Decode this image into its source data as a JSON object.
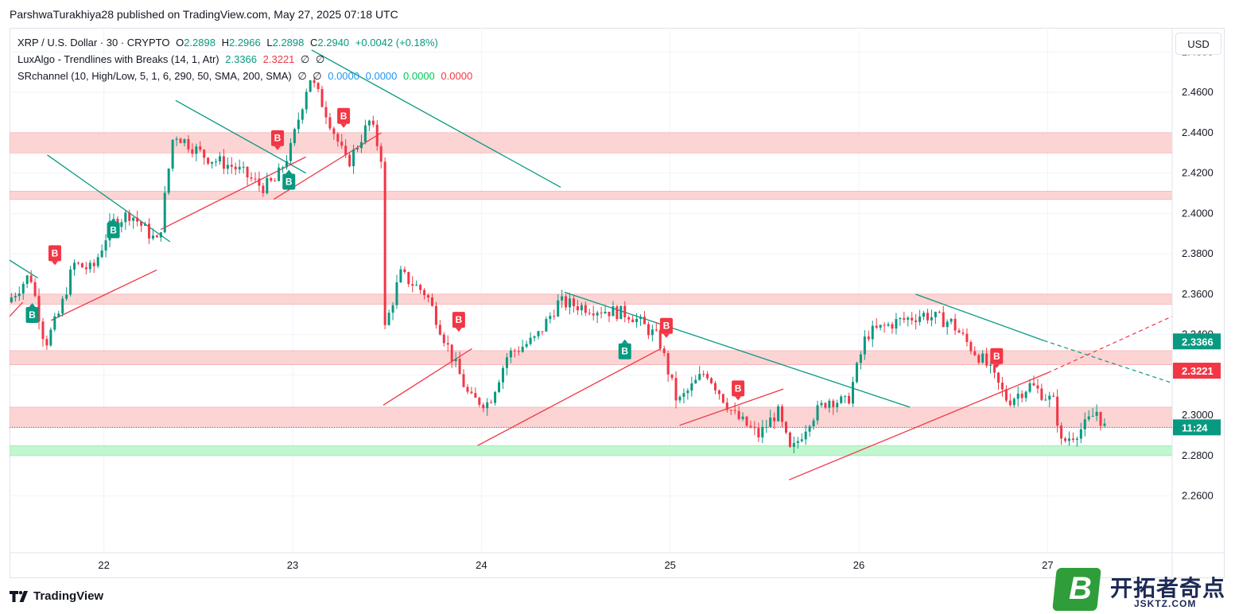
{
  "publisher": "ParshwaTurakhiya28 published on TradingView.com, May 27, 2025 07:18 UTC",
  "legend": {
    "symbol": "XRP / U.S. Dollar · 30 · CRYPTO",
    "o_label": "O",
    "o": "2.2898",
    "h_label": "H",
    "h": "2.2966",
    "l_label": "L",
    "l": "2.2898",
    "c_label": "C",
    "c": "2.2940",
    "change": "+0.0042 (+0.18%)",
    "ind1_name": "LuxAlgo - Trendlines with Breaks (14, 1, Atr)",
    "ind1_v1": "2.3366",
    "ind1_v2": "2.3221",
    "ind1_v3": "∅",
    "ind1_v4": "∅",
    "ind2_name": "SRchannel (10, High/Low, 5, 1, 6, 290, 50, SMA, 200, SMA)",
    "ind2_v1": "∅",
    "ind2_v2": "∅",
    "ind2_v3": "0.0000",
    "ind2_v4": "0.0000",
    "ind2_v5": "0.0000",
    "ind2_v6": "0.0000"
  },
  "currency_button": "USD",
  "branding": "TradingView",
  "watermark": {
    "logo_letter": "B",
    "cn": "开拓者奇点",
    "en": "JSKTZ.COM"
  },
  "colors": {
    "up": "#089981",
    "down": "#f23645",
    "resistance_zone": "#f9b6b6",
    "support_zone": "#b9f6ca"
  },
  "chart_data": {
    "type": "candlestick",
    "ylim": [
      2.25,
      2.49
    ],
    "y_ticks": [
      "2.2600",
      "2.2800",
      "2.3000",
      "2.3200",
      "2.3400",
      "2.3600",
      "2.3800",
      "2.4000",
      "2.4200",
      "2.4400",
      "2.4600",
      "2.4800"
    ],
    "x_ticks": [
      {
        "label": "22",
        "day": 22
      },
      {
        "label": "23",
        "day": 23
      },
      {
        "label": "24",
        "day": 24
      },
      {
        "label": "25",
        "day": 25
      },
      {
        "label": "26",
        "day": 26
      },
      {
        "label": "27",
        "day": 27
      }
    ],
    "price_anchors": [
      [
        21.5,
        2.356
      ],
      [
        21.62,
        2.37
      ],
      [
        21.7,
        2.335
      ],
      [
        21.78,
        2.352
      ],
      [
        21.85,
        2.375
      ],
      [
        21.95,
        2.372
      ],
      [
        22.05,
        2.395
      ],
      [
        22.15,
        2.4
      ],
      [
        22.3,
        2.385
      ],
      [
        22.38,
        2.44
      ],
      [
        22.55,
        2.428
      ],
      [
        22.7,
        2.423
      ],
      [
        22.85,
        2.413
      ],
      [
        22.92,
        2.416
      ],
      [
        23.0,
        2.432
      ],
      [
        23.1,
        2.468
      ],
      [
        23.18,
        2.452
      ],
      [
        23.3,
        2.424
      ],
      [
        23.42,
        2.446
      ],
      [
        23.48,
        2.428
      ],
      [
        23.5,
        2.343
      ],
      [
        23.58,
        2.37
      ],
      [
        23.72,
        2.36
      ],
      [
        23.85,
        2.33
      ],
      [
        23.95,
        2.308
      ],
      [
        24.05,
        2.306
      ],
      [
        24.15,
        2.33
      ],
      [
        24.3,
        2.338
      ],
      [
        24.42,
        2.356
      ],
      [
        24.6,
        2.353
      ],
      [
        24.8,
        2.35
      ],
      [
        24.95,
        2.338
      ],
      [
        25.05,
        2.306
      ],
      [
        25.2,
        2.322
      ],
      [
        25.35,
        2.3
      ],
      [
        25.48,
        2.29
      ],
      [
        25.58,
        2.302
      ],
      [
        25.65,
        2.281
      ],
      [
        25.75,
        2.298
      ],
      [
        25.85,
        2.308
      ],
      [
        25.95,
        2.306
      ],
      [
        26.05,
        2.34
      ],
      [
        26.2,
        2.346
      ],
      [
        26.35,
        2.35
      ],
      [
        26.5,
        2.346
      ],
      [
        26.6,
        2.334
      ],
      [
        26.68,
        2.326
      ],
      [
        26.8,
        2.307
      ],
      [
        26.92,
        2.315
      ],
      [
        27.05,
        2.306
      ],
      [
        27.08,
        2.286
      ],
      [
        27.2,
        2.294
      ],
      [
        27.28,
        2.303
      ],
      [
        27.3,
        2.294
      ]
    ],
    "resistance_zones": [
      [
        2.43,
        2.44
      ],
      [
        2.407,
        2.411
      ],
      [
        2.355,
        2.36
      ],
      [
        2.325,
        2.332
      ],
      [
        2.294,
        2.304
      ]
    ],
    "support_zones": [
      [
        2.28,
        2.285
      ]
    ],
    "trendlines_down": [
      [
        [
          21.48,
          2.378
        ],
        [
          21.65,
          2.368
        ]
      ],
      [
        [
          21.7,
          2.429
        ],
        [
          22.35,
          2.386
        ]
      ],
      [
        [
          22.38,
          2.456
        ],
        [
          23.07,
          2.42
        ]
      ],
      [
        [
          23.1,
          2.481
        ],
        [
          24.42,
          2.413
        ]
      ],
      [
        [
          24.44,
          2.361
        ],
        [
          26.27,
          2.304
        ]
      ],
      [
        [
          26.3,
          2.36
        ],
        [
          26.98,
          2.337
        ]
      ]
    ],
    "trendlines_up": [
      [
        [
          21.48,
          2.347
        ],
        [
          21.57,
          2.356
        ]
      ],
      [
        [
          21.72,
          2.347
        ],
        [
          22.28,
          2.372
        ]
      ],
      [
        [
          22.3,
          2.392
        ],
        [
          23.07,
          2.428
        ]
      ],
      [
        [
          22.9,
          2.407
        ],
        [
          23.47,
          2.44
        ]
      ],
      [
        [
          23.48,
          2.305
        ],
        [
          23.95,
          2.333
        ]
      ],
      [
        [
          23.98,
          2.285
        ],
        [
          24.95,
          2.333
        ]
      ],
      [
        [
          25.05,
          2.295
        ],
        [
          25.6,
          2.313
        ]
      ],
      [
        [
          25.63,
          2.268
        ],
        [
          27.0,
          2.321
        ]
      ]
    ],
    "dashed_down": [
      [
        26.98,
        2.337
      ],
      [
        27.66,
        2.316
      ]
    ],
    "dashed_up": [
      [
        27.0,
        2.321
      ],
      [
        27.66,
        2.349
      ]
    ],
    "signals": [
      {
        "type": "up",
        "label": "B",
        "day": 21.62,
        "price": 2.356
      },
      {
        "type": "down",
        "label": "B",
        "day": 21.74,
        "price": 2.374
      },
      {
        "type": "up",
        "label": "B",
        "day": 22.05,
        "price": 2.398
      },
      {
        "type": "down",
        "label": "B",
        "day": 22.92,
        "price": 2.431
      },
      {
        "type": "up",
        "label": "B",
        "day": 22.98,
        "price": 2.422
      },
      {
        "type": "down",
        "label": "B",
        "day": 23.27,
        "price": 2.442
      },
      {
        "type": "down",
        "label": "B",
        "day": 23.88,
        "price": 2.341
      },
      {
        "type": "up",
        "label": "B",
        "day": 24.76,
        "price": 2.338
      },
      {
        "type": "down",
        "label": "B",
        "day": 24.98,
        "price": 2.338
      },
      {
        "type": "down",
        "label": "B",
        "day": 25.36,
        "price": 2.307
      },
      {
        "type": "down",
        "label": "B",
        "day": 26.73,
        "price": 2.323
      }
    ],
    "last_price": 2.294,
    "price_labels": [
      {
        "text": "2.3366",
        "price": 2.3366,
        "color": "#089981"
      },
      {
        "text": "2.3221",
        "price": 2.3221,
        "color": "#f23645"
      },
      {
        "text": "11:24",
        "price": 2.294,
        "color": "#089981"
      }
    ]
  }
}
